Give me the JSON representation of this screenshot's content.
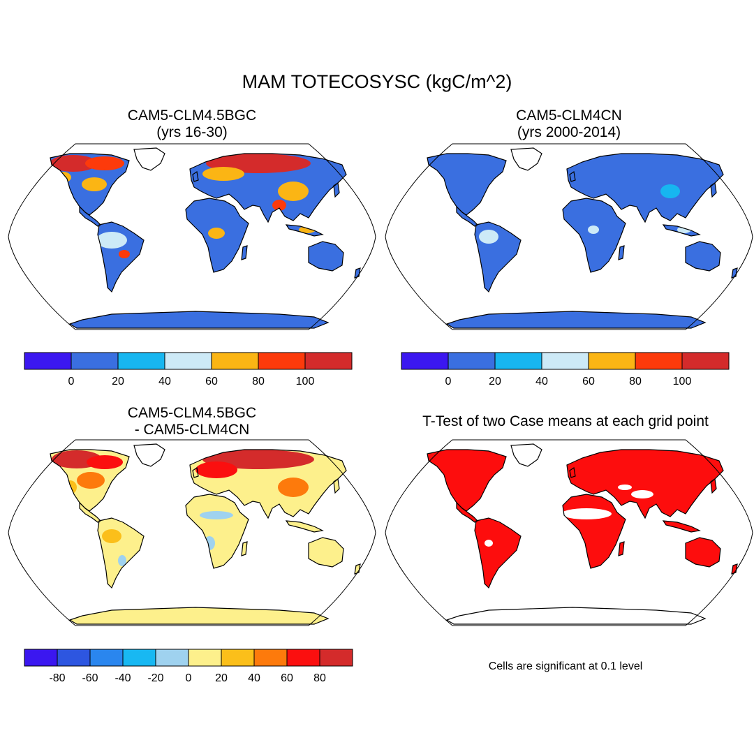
{
  "figure": {
    "title": "MAM TOTECOSYSC (kgC/m^2)"
  },
  "panels": {
    "p1": {
      "title_line1": "CAM5-CLM4.5BGC",
      "title_line2": "(yrs 16-30)"
    },
    "p2": {
      "title_line1": "CAM5-CLM4CN",
      "title_line2": "(yrs 2000-2014)"
    },
    "p3": {
      "title_line1": "CAM5-CLM4.5BGC",
      "title_line2": "- CAM5-CLM4CN"
    },
    "p4": {
      "title_line1": "T-Test of two Case means at each grid point",
      "note": "Cells are significant at 0.1 level"
    }
  },
  "colorbars": {
    "abs": {
      "colors": [
        "#3b17f0",
        "#3a6fe0",
        "#17b6f0",
        "#cdeaf7",
        "#fbb514",
        "#fd3a0b",
        "#d42b2b"
      ],
      "labels": [
        "0",
        "20",
        "40",
        "60",
        "80",
        "100"
      ]
    },
    "diff": {
      "colors": [
        "#3b17f0",
        "#2d56e0",
        "#2a86ee",
        "#18b8f2",
        "#9fd2ef",
        "#fdf08c",
        "#fbbf1a",
        "#fd7a0c",
        "#fb0f0f",
        "#d42b2b"
      ],
      "labels": [
        "-80",
        "-60",
        "-40",
        "-20",
        "0",
        "20",
        "40",
        "60",
        "80"
      ]
    }
  },
  "map_colors": {
    "ocean": "#ffffff",
    "outline": "#000000",
    "significant": "#fd0d0d"
  }
}
